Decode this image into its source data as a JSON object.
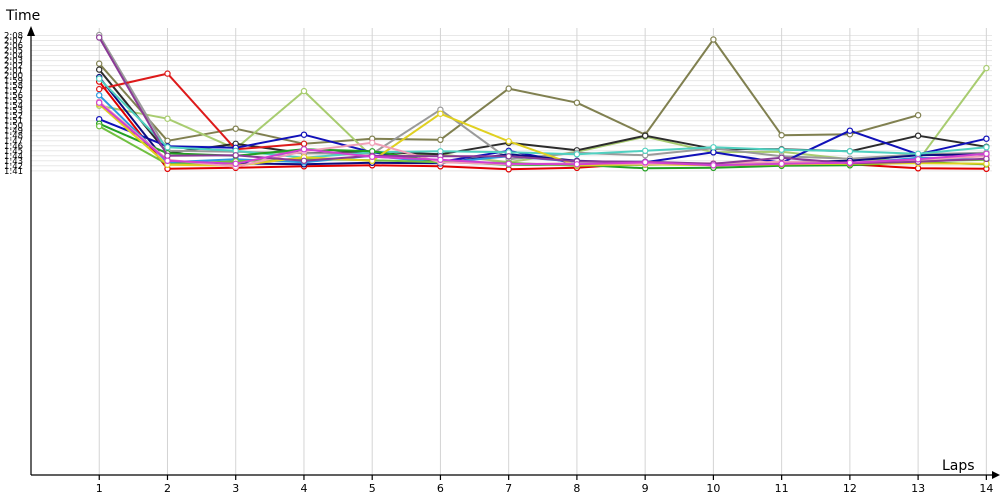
{
  "chart_data": {
    "type": "line",
    "title": "",
    "xlabel": "Laps",
    "ylabel": "Time",
    "x": [
      1,
      2,
      3,
      4,
      5,
      6,
      7,
      8,
      9,
      10,
      11,
      12,
      13,
      14
    ],
    "xlim": [
      0,
      14.2
    ],
    "ylim": [
      40.3,
      129.5
    ],
    "y_unit": "seconds",
    "y_ticks": [
      {
        "value": 101,
        "label": "1:41"
      },
      {
        "value": 102,
        "label": "1:42"
      },
      {
        "value": 103,
        "label": "1:43"
      },
      {
        "value": 104,
        "label": "1:44"
      },
      {
        "value": 105,
        "label": "1:45"
      },
      {
        "value": 106,
        "label": "1:46"
      },
      {
        "value": 107,
        "label": "1:47"
      },
      {
        "value": 108,
        "label": "1:48"
      },
      {
        "value": 109,
        "label": "1:49"
      },
      {
        "value": 110,
        "label": "1:50"
      },
      {
        "value": 111,
        "label": "1:51"
      },
      {
        "value": 112,
        "label": "1:52"
      },
      {
        "value": 113,
        "label": "1:53"
      },
      {
        "value": 114,
        "label": "1:54"
      },
      {
        "value": 115,
        "label": "1:55"
      },
      {
        "value": 116,
        "label": "1:56"
      },
      {
        "value": 117,
        "label": "1:57"
      },
      {
        "value": 118,
        "label": "1:58"
      },
      {
        "value": 119,
        "label": "1:59"
      },
      {
        "value": 120,
        "label": "2:00"
      },
      {
        "value": 121,
        "label": "2:01"
      },
      {
        "value": 122,
        "label": "2:02"
      },
      {
        "value": 123,
        "label": "2:03"
      },
      {
        "value": 124,
        "label": "2:04"
      },
      {
        "value": 125,
        "label": "2:05"
      },
      {
        "value": 126,
        "label": "2:06"
      },
      {
        "value": 127,
        "label": "2:07"
      },
      {
        "value": 128,
        "label": "2:08"
      }
    ],
    "x_tick_labels": [
      "1",
      "2",
      "3",
      "4",
      "5",
      "6",
      "7",
      "8",
      "9",
      "10",
      "11",
      "12",
      "13",
      "14"
    ],
    "grid": true,
    "legend": "none",
    "series": [
      {
        "color": "#808050",
        "values": [
          122.4,
          107.0,
          109.4,
          106.4,
          107.4,
          107.2,
          117.4,
          114.6,
          108.2,
          127.2,
          108.1,
          108.3,
          112.1,
          null
        ]
      },
      {
        "color": "#a8cc70",
        "values": [
          114.0,
          111.4,
          105.4,
          116.9,
          103.8,
          104.3,
          102.7,
          104.8,
          107.8,
          104.7,
          104.8,
          103.3,
          103.0,
          121.5
        ]
      },
      {
        "color": "#2c2c2c",
        "values": [
          121.2,
          104.5,
          106.4,
          104.5,
          104.8,
          104.3,
          106.6,
          105.1,
          108.0,
          105.4,
          105.3,
          104.9,
          108.0,
          105.8
        ]
      },
      {
        "color": "#9a9a9a",
        "values": [
          128.1,
          105.0,
          104.8,
          104.5,
          104.4,
          113.2,
          103.3,
          104.6,
          104.1,
          105.5,
          103.9,
          103.4,
          104.3,
          104.6
        ]
      },
      {
        "color": "#e00000",
        "values": [
          118.8,
          101.4,
          101.6,
          101.9,
          102.1,
          101.9,
          101.3,
          101.6,
          102.5,
          102.1,
          102.3,
          102.3,
          101.5,
          101.4
        ]
      },
      {
        "color": "#dd1a1a",
        "values": [
          117.3,
          120.4,
          105.3,
          106.4,
          null,
          null,
          null,
          null,
          null,
          null,
          null,
          null,
          null,
          null
        ]
      },
      {
        "color": "#1010b8",
        "values": [
          111.3,
          105.9,
          105.6,
          108.2,
          104.7,
          102.8,
          105.0,
          102.4,
          102.7,
          104.7,
          102.6,
          109.0,
          104.3,
          107.4
        ]
      },
      {
        "color": "#0d0d80",
        "values": [
          119.7,
          102.5,
          102.5,
          102.3,
          102.6,
          102.5,
          104.3,
          103.0,
          102.6,
          102.4,
          102.7,
          103.0,
          104.1,
          104.3
        ]
      },
      {
        "color": "#2a9adf",
        "values": [
          116.1,
          102.7,
          103.3,
          102.7,
          104.0,
          102.6,
          103.9,
          102.8,
          102.8,
          102.3,
          102.6,
          102.4,
          103.6,
          103.2
        ]
      },
      {
        "color": "#50d0c0",
        "values": [
          119.4,
          105.7,
          105.0,
          103.6,
          104.7,
          104.9,
          104.7,
          104.3,
          105.0,
          105.7,
          105.2,
          104.9,
          104.4,
          105.7
        ]
      },
      {
        "color": "#22a022",
        "values": [
          110.4,
          104.5,
          104.0,
          105.3,
          104.9,
          102.8,
          102.2,
          102.2,
          101.5,
          101.6,
          102.0,
          102.1,
          102.7,
          102.3
        ]
      },
      {
        "color": "#70c040",
        "values": [
          109.9,
          102.3,
          102.9,
          103.4,
          103.1,
          102.7,
          102.6,
          102.0,
          102.2,
          102.4,
          102.6,
          102.4,
          102.9,
          103.2
        ]
      },
      {
        "color": "#e0d020",
        "values": [
          114.3,
          102.2,
          102.0,
          103.7,
          103.0,
          112.4,
          106.9,
          102.1,
          102.3,
          102.1,
          102.3,
          102.4,
          102.5,
          102.4
        ]
      },
      {
        "color": "#f0a0b8",
        "values": [
          114.8,
          103.2,
          101.8,
          104.9,
          106.6,
          102.7,
          102.3,
          102.5,
          102.4,
          102.5,
          102.8,
          102.6,
          103.2,
          103.9
        ]
      },
      {
        "color": "#8a3a96",
        "values": [
          127.6,
          104.0,
          104.1,
          103.0,
          104.0,
          103.9,
          103.9,
          102.9,
          102.8,
          102.4,
          103.6,
          102.5,
          102.8,
          103.4
        ]
      },
      {
        "color": "#d040d0",
        "values": [
          114.6,
          103.0,
          102.4,
          105.3,
          103.8,
          103.2,
          102.4,
          102.3,
          102.7,
          102.1,
          102.4,
          102.6,
          103.3,
          104.4
        ]
      }
    ]
  }
}
